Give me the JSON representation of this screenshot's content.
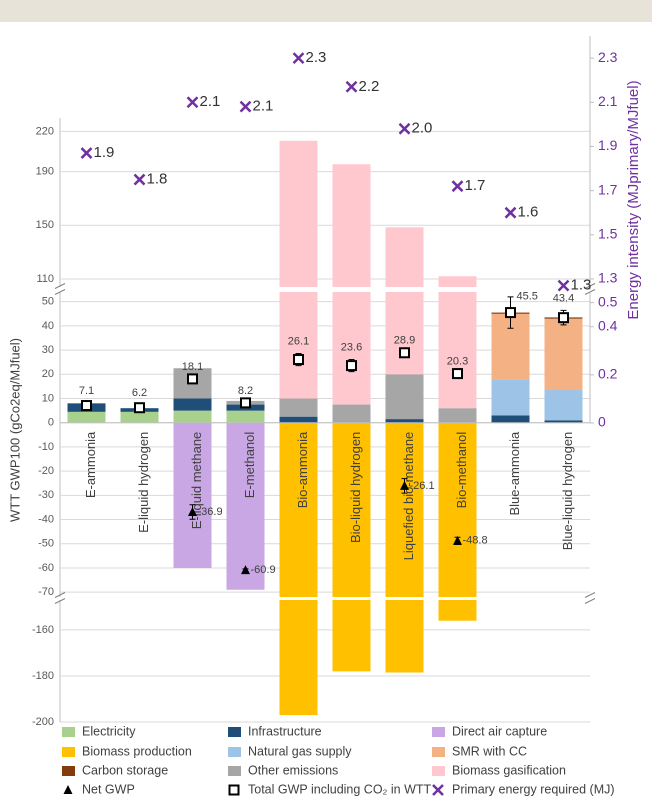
{
  "chart_data": {
    "type": "bar",
    "stacked": true,
    "grid": true,
    "y_label": "WTT GWP100 (gCo2eq/MJfuel)",
    "y2_label": "Energy intensity (MJprimary/MJfuel)",
    "categories": [
      "E-ammonia",
      "E-liquid hydrogen",
      "E-liquid methane",
      "E-methanol",
      "Bio-ammonia",
      "Bio-liquid hydrogen",
      "Liquefied bio-methane",
      "Bio-methanol",
      "Blue-ammonia",
      "Blue-liquid hydrogen"
    ],
    "y_segments": [
      {
        "ylim": [
          104,
          230
        ],
        "yticks": [
          110,
          150,
          190,
          220
        ]
      },
      {
        "ylim": [
          -72,
          54
        ],
        "yticks": [
          50,
          40,
          30,
          20,
          10,
          0,
          -10,
          -20,
          -30,
          -40,
          -50,
          -60,
          -70
        ]
      },
      {
        "ylim": [
          -200,
          -147
        ],
        "yticks": [
          -160,
          -180,
          -200
        ]
      }
    ],
    "y2_segments": [
      {
        "y2lim": [
          1.25,
          2.4
        ],
        "y2ticks": [
          1.3,
          1.5,
          1.7,
          1.9,
          2.1,
          2.3
        ]
      },
      {
        "y2lim": [
          0,
          0.54
        ],
        "y2ticks": [
          0,
          0.2,
          0.4,
          0.5
        ]
      }
    ],
    "series": [
      {
        "name": "Electricity",
        "color": "#a9d18e",
        "values": [
          4.5,
          4.5,
          5,
          5,
          null,
          null,
          null,
          null,
          null,
          null
        ]
      },
      {
        "name": "Infrastructure",
        "color": "#1f4e79",
        "values": [
          3.5,
          1.5,
          5,
          2.5,
          2.5,
          null,
          1.5,
          null,
          3,
          1
        ]
      },
      {
        "name": "Direct air capture",
        "color": "#c9a6e4",
        "values": [
          null,
          null,
          -60,
          -69,
          null,
          null,
          null,
          null,
          null,
          null
        ]
      },
      {
        "name": "Biomass production",
        "color": "#ffc000",
        "values": [
          null,
          null,
          null,
          null,
          -197,
          -178,
          -178.5,
          -156,
          null,
          null
        ]
      },
      {
        "name": "Natural gas supply",
        "color": "#9dc3e6",
        "values": [
          null,
          null,
          null,
          null,
          null,
          null,
          null,
          null,
          15,
          12.5
        ]
      },
      {
        "name": "SMR with CC",
        "color": "#f4b183",
        "values": [
          null,
          null,
          null,
          null,
          null,
          null,
          null,
          null,
          27,
          29.5
        ]
      },
      {
        "name": "Carbon storage",
        "color": "#843c0c",
        "values": [
          null,
          null,
          null,
          null,
          null,
          null,
          null,
          null,
          0.5,
          0.5
        ]
      },
      {
        "name": "Other emissions",
        "color": "#a6a6a6",
        "values": [
          null,
          null,
          12.5,
          1.5,
          7.5,
          7.5,
          18.5,
          6,
          null,
          null
        ]
      },
      {
        "name": "Biomass gasification",
        "color": "#ffc7ce",
        "values": [
          null,
          null,
          null,
          null,
          203,
          188,
          128.5,
          106,
          null,
          null
        ]
      }
    ],
    "markers": [
      {
        "name": "Net GWP",
        "shape": "triangle",
        "color": "#000000",
        "values": [
          null,
          null,
          -36.9,
          -60.9,
          null,
          null,
          -26.1,
          -48.8,
          null,
          null
        ],
        "errors": [
          null,
          null,
          3,
          0.5,
          null,
          null,
          3,
          1.5,
          null,
          null
        ]
      },
      {
        "name": "Total GWP including CO₂ in WTT",
        "shape": "square",
        "color": "#000000",
        "values": [
          7.1,
          6.2,
          18.1,
          8.2,
          26.1,
          23.6,
          28.9,
          20.3,
          45.5,
          43.4
        ],
        "errors": [
          1,
          1,
          null,
          null,
          2.5,
          2.5,
          null,
          null,
          6.5,
          3
        ]
      },
      {
        "name": "Primary energy required (MJ)",
        "shape": "x",
        "color": "#7030a0",
        "axis": "y2",
        "values": [
          1.87,
          1.75,
          2.1,
          2.08,
          2.3,
          2.17,
          1.98,
          1.72,
          1.6,
          1.27
        ],
        "value_labels": [
          "1.9",
          "1.8",
          "2.1",
          "2.1",
          "2.3",
          "2.2",
          "2.0",
          "1.7",
          "1.6",
          "1.3"
        ]
      }
    ]
  }
}
